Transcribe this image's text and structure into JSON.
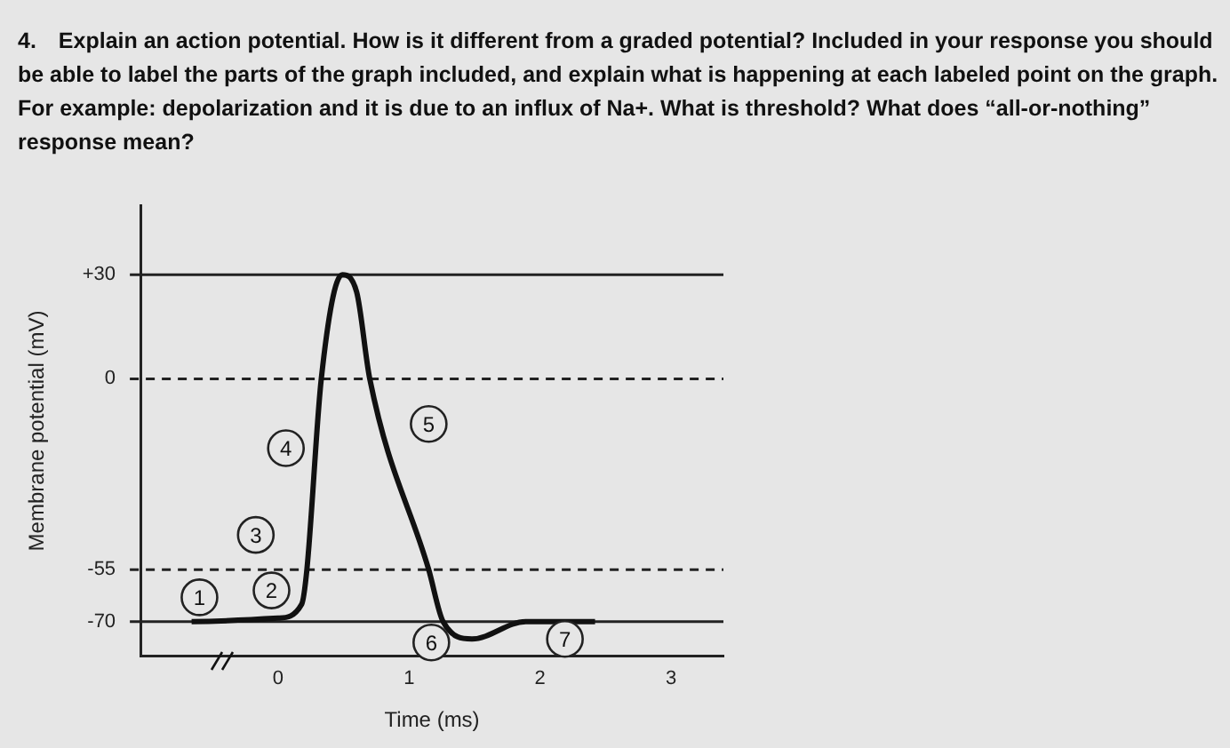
{
  "chart_data": {
    "type": "line",
    "title": "4. Explain an action potential.  How is it different from a graded potential? Included in your response you should be able to label the parts of the graph included, and explain what is happening at each labeled point on the graph.  For example: depolarization and it is due to an influx of Na+.  What is threshold?  What does “all-or-nothing” response mean?",
    "xlabel": "Time (ms)",
    "ylabel": "Membrane potential (mV)",
    "series": [
      {
        "color": "#111111",
        "x": [
          -0.66,
          0,
          0.18,
          0.22,
          0.33,
          0.49,
          0.6,
          0.7,
          1.15,
          1.26,
          1.48,
          1.89,
          2.42
        ],
        "values": [
          -70,
          -69,
          -65,
          -55,
          0,
          30,
          25,
          0,
          -55,
          -70,
          -75,
          -70,
          -70
        ]
      }
    ],
    "xlim": [
      -1.05,
      3.4
    ],
    "xticks": [
      0,
      1,
      2,
      3
    ],
    "ylim": [
      -80,
      50
    ],
    "yticks": [
      {
        "value": 30,
        "label": "+30"
      },
      0,
      -55,
      -70
    ],
    "ref_lines": [
      {
        "axis": "y",
        "value": 30,
        "line_style": "solid"
      },
      {
        "axis": "y",
        "value": 0,
        "line_style": "dashed"
      },
      {
        "axis": "y",
        "value": -55,
        "line_style": "dashed"
      },
      {
        "axis": "y",
        "value": -70,
        "line_style": "solid"
      }
    ],
    "annotations": [
      {
        "text": "1",
        "x": -0.6,
        "y": -63
      },
      {
        "text": "2",
        "x": -0.05,
        "y": -61
      },
      {
        "text": "3",
        "x": -0.17,
        "y": -45
      },
      {
        "text": "4",
        "x": 0.06,
        "y": -20
      },
      {
        "text": "5",
        "x": 1.15,
        "y": -13
      },
      {
        "text": "6",
        "x": 1.17,
        "y": -76
      },
      {
        "text": "7",
        "x": 2.19,
        "y": -75
      }
    ],
    "grid": false,
    "legend": false,
    "marker": "none",
    "line_style": "solid"
  }
}
